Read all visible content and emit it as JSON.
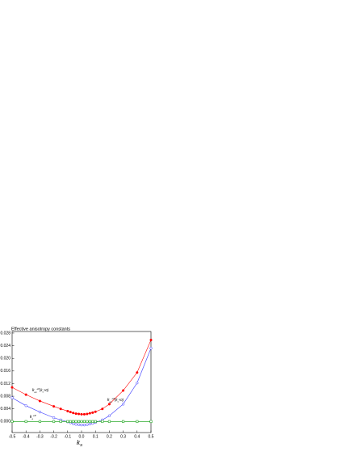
{
  "chart_data": {
    "type": "line",
    "title": "Effective anisotropy constants",
    "x_label": {
      "base": "k",
      "sub": "S"
    },
    "x": [
      -0.5,
      -0.4,
      -0.3,
      -0.2,
      -0.15,
      -0.1,
      -0.08,
      -0.06,
      -0.04,
      -0.02,
      0,
      0.02,
      0.04,
      0.06,
      0.08,
      0.1,
      0.15,
      0.2,
      0.3,
      0.4,
      0.5
    ],
    "series": [
      {
        "name": "red",
        "color": "#ff0000",
        "marker": "filled-circle",
        "values": [
          0.0108,
          0.0085,
          0.0065,
          0.0048,
          0.004,
          0.0033,
          0.003,
          0.0027,
          0.0025,
          0.0024,
          0.0023,
          0.0023,
          0.0024,
          0.0026,
          0.0028,
          0.0031,
          0.004,
          0.0055,
          0.0098,
          0.0155,
          0.0258
        ]
      },
      {
        "name": "blue",
        "color": "#3333ff",
        "marker": "open-circle",
        "values": [
          0.0075,
          0.005,
          0.003,
          0.0012,
          0.0005,
          -0.0001,
          -0.0004,
          -0.0007,
          -0.0009,
          -0.001,
          -0.0011,
          -0.0011,
          -0.001,
          -0.0008,
          -0.0006,
          -0.0003,
          0.0005,
          0.0018,
          0.0055,
          0.0122,
          0.0232
        ]
      },
      {
        "name": "green",
        "color": "#009900",
        "marker": "open-square",
        "values": [
          0,
          0,
          0,
          0,
          0,
          0,
          0,
          0,
          0,
          0,
          0,
          0,
          0,
          0,
          0,
          0,
          0,
          0,
          0,
          0,
          0
        ]
      }
    ],
    "annotations": [
      {
        "base": "k",
        "sub": "ex",
        "sup": "eff",
        "cond": "(k",
        "cond_sub": "c",
        "cond_rest": ">0)"
      },
      {
        "base": "k",
        "sub": "ex",
        "sup": "eff",
        "cond": "(k",
        "cond_sub": "c",
        "cond_rest": "<0)"
      },
      {
        "base": "k",
        "sub": "e",
        "sup": "eff"
      }
    ],
    "xlim": [
      -0.5,
      0.5
    ],
    "xticks": [
      -0.5,
      -0.4,
      -0.3,
      -0.2,
      -0.1,
      {
        "value": 0,
        "label": "0.0"
      },
      0.1,
      0.2,
      0.3,
      0.4,
      0.5
    ],
    "ylim": [
      -0.0035,
      0.0285
    ],
    "yticks": [
      {
        "value": 0,
        "label": "0.000"
      },
      0.004,
      0.008,
      0.012,
      0.016,
      {
        "value": 0.02,
        "label": "0.020"
      },
      0.024,
      0.028
    ]
  }
}
